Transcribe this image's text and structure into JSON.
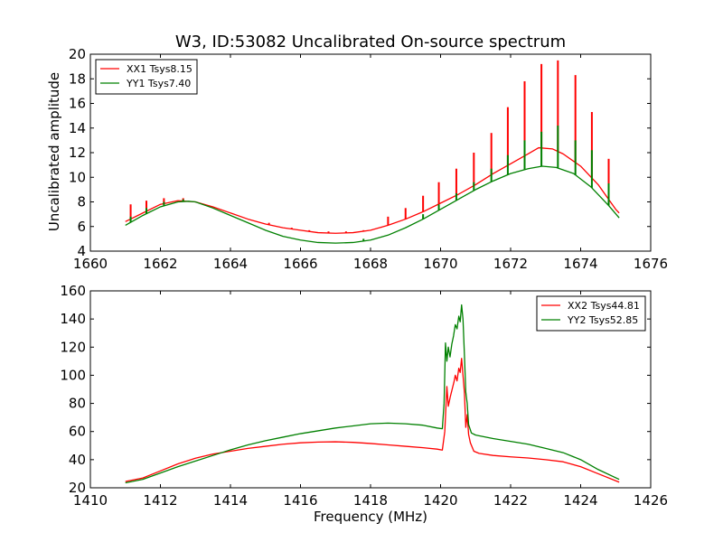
{
  "chart_data": [
    {
      "type": "line",
      "title": "W3, ID:53082 Uncalibrated On-source spectrum",
      "xlabel": "",
      "ylabel": "Uncalibrated amplitude",
      "xlim": [
        1660,
        1676
      ],
      "ylim": [
        4,
        20
      ],
      "xticks": [
        "1660",
        "1662",
        "1664",
        "1666",
        "1668",
        "1670",
        "1672",
        "1674",
        "1676"
      ],
      "yticks": [
        "4",
        "6",
        "8",
        "10",
        "12",
        "14",
        "16",
        "18",
        "20"
      ],
      "legend_position": "top-left",
      "series": [
        {
          "name": "XX1 Tsys8.15",
          "color": "#ff0000",
          "points": [
            [
              1661.0,
              6.4
            ],
            [
              1661.5,
              7.1
            ],
            [
              1662.0,
              7.8
            ],
            [
              1662.5,
              8.1
            ],
            [
              1663.0,
              8.0
            ],
            [
              1663.5,
              7.6
            ],
            [
              1664.0,
              7.1
            ],
            [
              1664.5,
              6.6
            ],
            [
              1665.0,
              6.2
            ],
            [
              1665.5,
              5.9
            ],
            [
              1666.0,
              5.7
            ],
            [
              1666.5,
              5.5
            ],
            [
              1667.0,
              5.45
            ],
            [
              1667.5,
              5.5
            ],
            [
              1668.0,
              5.7
            ],
            [
              1668.5,
              6.1
            ],
            [
              1669.0,
              6.6
            ],
            [
              1669.5,
              7.2
            ],
            [
              1670.0,
              7.9
            ],
            [
              1670.5,
              8.6
            ],
            [
              1671.0,
              9.4
            ],
            [
              1671.5,
              10.3
            ],
            [
              1672.0,
              11.1
            ],
            [
              1672.5,
              11.9
            ],
            [
              1672.8,
              12.4
            ],
            [
              1673.2,
              12.3
            ],
            [
              1673.5,
              11.9
            ],
            [
              1674.0,
              10.9
            ],
            [
              1674.5,
              9.4
            ],
            [
              1675.0,
              7.4
            ],
            [
              1675.1,
              7.1
            ]
          ],
          "spikes": [
            [
              1661.15,
              7.8
            ],
            [
              1661.6,
              8.1
            ],
            [
              1662.1,
              8.3
            ],
            [
              1662.65,
              8.3
            ],
            [
              1665.1,
              6.3
            ],
            [
              1665.75,
              5.9
            ],
            [
              1666.25,
              5.7
            ],
            [
              1666.8,
              5.6
            ],
            [
              1667.3,
              5.6
            ],
            [
              1667.8,
              5.7
            ],
            [
              1668.3,
              5.9
            ],
            [
              1668.5,
              6.8
            ],
            [
              1669.0,
              7.5
            ],
            [
              1669.5,
              8.5
            ],
            [
              1669.95,
              9.6
            ],
            [
              1670.45,
              10.7
            ],
            [
              1670.95,
              12.0
            ],
            [
              1671.45,
              13.6
            ],
            [
              1671.92,
              15.7
            ],
            [
              1672.4,
              17.8
            ],
            [
              1672.88,
              19.2
            ],
            [
              1673.35,
              19.5
            ],
            [
              1673.85,
              18.3
            ],
            [
              1674.32,
              15.3
            ],
            [
              1674.8,
              11.5
            ]
          ]
        },
        {
          "name": "YY1 Tsys7.40",
          "color": "#008000",
          "points": [
            [
              1661.0,
              6.1
            ],
            [
              1661.5,
              6.9
            ],
            [
              1662.0,
              7.6
            ],
            [
              1662.5,
              8.0
            ],
            [
              1662.8,
              8.05
            ],
            [
              1663.0,
              8.0
            ],
            [
              1663.5,
              7.5
            ],
            [
              1664.0,
              6.9
            ],
            [
              1664.5,
              6.3
            ],
            [
              1665.0,
              5.7
            ],
            [
              1665.5,
              5.2
            ],
            [
              1666.0,
              4.9
            ],
            [
              1666.5,
              4.7
            ],
            [
              1667.0,
              4.65
            ],
            [
              1667.5,
              4.7
            ],
            [
              1668.0,
              4.9
            ],
            [
              1668.5,
              5.3
            ],
            [
              1669.0,
              5.9
            ],
            [
              1669.5,
              6.6
            ],
            [
              1670.0,
              7.4
            ],
            [
              1670.5,
              8.2
            ],
            [
              1671.0,
              9.0
            ],
            [
              1671.5,
              9.7
            ],
            [
              1672.0,
              10.3
            ],
            [
              1672.5,
              10.7
            ],
            [
              1672.9,
              10.9
            ],
            [
              1673.3,
              10.8
            ],
            [
              1673.8,
              10.3
            ],
            [
              1674.3,
              9.2
            ],
            [
              1674.8,
              7.7
            ],
            [
              1675.1,
              6.7
            ]
          ],
          "spikes": [
            [
              1661.15,
              6.8
            ],
            [
              1661.6,
              7.5
            ],
            [
              1662.1,
              8.0
            ],
            [
              1662.65,
              8.2
            ],
            [
              1667.8,
              5.0
            ],
            [
              1668.3,
              5.1
            ],
            [
              1669.5,
              7.0
            ],
            [
              1669.95,
              7.8
            ],
            [
              1670.45,
              8.7
            ],
            [
              1670.95,
              9.6
            ],
            [
              1671.45,
              10.7
            ],
            [
              1671.92,
              11.8
            ],
            [
              1672.4,
              13.0
            ],
            [
              1672.88,
              13.7
            ],
            [
              1673.35,
              14.2
            ],
            [
              1673.85,
              13.0
            ],
            [
              1674.32,
              12.2
            ],
            [
              1674.8,
              9.5
            ]
          ]
        }
      ]
    },
    {
      "type": "line",
      "title": "",
      "xlabel": "Frequency (MHz)",
      "ylabel": "",
      "xlim": [
        1410,
        1426
      ],
      "ylim": [
        20,
        160
      ],
      "xticks": [
        "1410",
        "1412",
        "1414",
        "1416",
        "1418",
        "1420",
        "1422",
        "1424",
        "1426"
      ],
      "yticks": [
        "20",
        "40",
        "60",
        "80",
        "100",
        "120",
        "140",
        "160"
      ],
      "legend_position": "top-right",
      "series": [
        {
          "name": "XX2 Tsys44.81",
          "color": "#ff0000",
          "points": [
            [
              1411.0,
              24.5
            ],
            [
              1411.5,
              27.0
            ],
            [
              1412.0,
              32.0
            ],
            [
              1412.5,
              37.0
            ],
            [
              1413.0,
              41.0
            ],
            [
              1413.5,
              44.0
            ],
            [
              1414.0,
              46.0
            ],
            [
              1414.5,
              48.0
            ],
            [
              1415.0,
              49.5
            ],
            [
              1415.5,
              51.0
            ],
            [
              1416.0,
              52.0
            ],
            [
              1416.5,
              52.5
            ],
            [
              1417.0,
              52.7
            ],
            [
              1417.5,
              52.3
            ],
            [
              1418.0,
              51.5
            ],
            [
              1418.5,
              50.5
            ],
            [
              1419.0,
              49.5
            ],
            [
              1419.5,
              48.5
            ],
            [
              1419.9,
              47.5
            ],
            [
              1420.05,
              46.8
            ],
            [
              1420.12,
              60.0
            ],
            [
              1420.18,
              92.0
            ],
            [
              1420.22,
              78.0
            ],
            [
              1420.28,
              85.0
            ],
            [
              1420.33,
              90.0
            ],
            [
              1420.38,
              95.0
            ],
            [
              1420.42,
              100.0
            ],
            [
              1420.47,
              96.0
            ],
            [
              1420.52,
              105.0
            ],
            [
              1420.56,
              102.0
            ],
            [
              1420.6,
              112.0
            ],
            [
              1420.64,
              100.0
            ],
            [
              1420.68,
              88.0
            ],
            [
              1420.72,
              63.0
            ],
            [
              1420.76,
              72.0
            ],
            [
              1420.8,
              58.0
            ],
            [
              1420.85,
              52.0
            ],
            [
              1420.95,
              46.0
            ],
            [
              1421.1,
              44.5
            ],
            [
              1421.5,
              43.0
            ],
            [
              1422.0,
              42.0
            ],
            [
              1422.5,
              41.2
            ],
            [
              1423.0,
              40.0
            ],
            [
              1423.5,
              38.5
            ],
            [
              1424.0,
              35.0
            ],
            [
              1424.5,
              30.0
            ],
            [
              1425.1,
              24.0
            ]
          ]
        },
        {
          "name": "YY2 Tsys52.85",
          "color": "#008000",
          "points": [
            [
              1411.0,
              23.5
            ],
            [
              1411.5,
              26.0
            ],
            [
              1412.0,
              30.5
            ],
            [
              1412.5,
              35.0
            ],
            [
              1413.0,
              39.0
            ],
            [
              1413.5,
              43.0
            ],
            [
              1414.0,
              47.0
            ],
            [
              1414.5,
              50.5
            ],
            [
              1415.0,
              53.5
            ],
            [
              1415.5,
              56.0
            ],
            [
              1416.0,
              58.5
            ],
            [
              1416.5,
              60.5
            ],
            [
              1417.0,
              62.5
            ],
            [
              1417.5,
              64.0
            ],
            [
              1418.0,
              65.5
            ],
            [
              1418.5,
              66.0
            ],
            [
              1419.0,
              65.5
            ],
            [
              1419.5,
              64.5
            ],
            [
              1419.9,
              62.5
            ],
            [
              1420.05,
              62.0
            ],
            [
              1420.1,
              80.0
            ],
            [
              1420.14,
              123.0
            ],
            [
              1420.18,
              110.0
            ],
            [
              1420.22,
              120.0
            ],
            [
              1420.27,
              113.0
            ],
            [
              1420.32,
              122.0
            ],
            [
              1420.37,
              128.0
            ],
            [
              1420.42,
              136.0
            ],
            [
              1420.47,
              133.0
            ],
            [
              1420.52,
              142.0
            ],
            [
              1420.56,
              138.0
            ],
            [
              1420.6,
              150.0
            ],
            [
              1420.64,
              140.0
            ],
            [
              1420.68,
              115.0
            ],
            [
              1420.72,
              88.0
            ],
            [
              1420.76,
              80.0
            ],
            [
              1420.8,
              65.0
            ],
            [
              1420.88,
              59.0
            ],
            [
              1421.0,
              57.5
            ],
            [
              1421.5,
              55.0
            ],
            [
              1422.0,
              53.0
            ],
            [
              1422.5,
              51.0
            ],
            [
              1423.0,
              48.0
            ],
            [
              1423.5,
              45.0
            ],
            [
              1424.0,
              40.0
            ],
            [
              1424.5,
              33.0
            ],
            [
              1425.1,
              26.0
            ]
          ]
        }
      ]
    }
  ]
}
